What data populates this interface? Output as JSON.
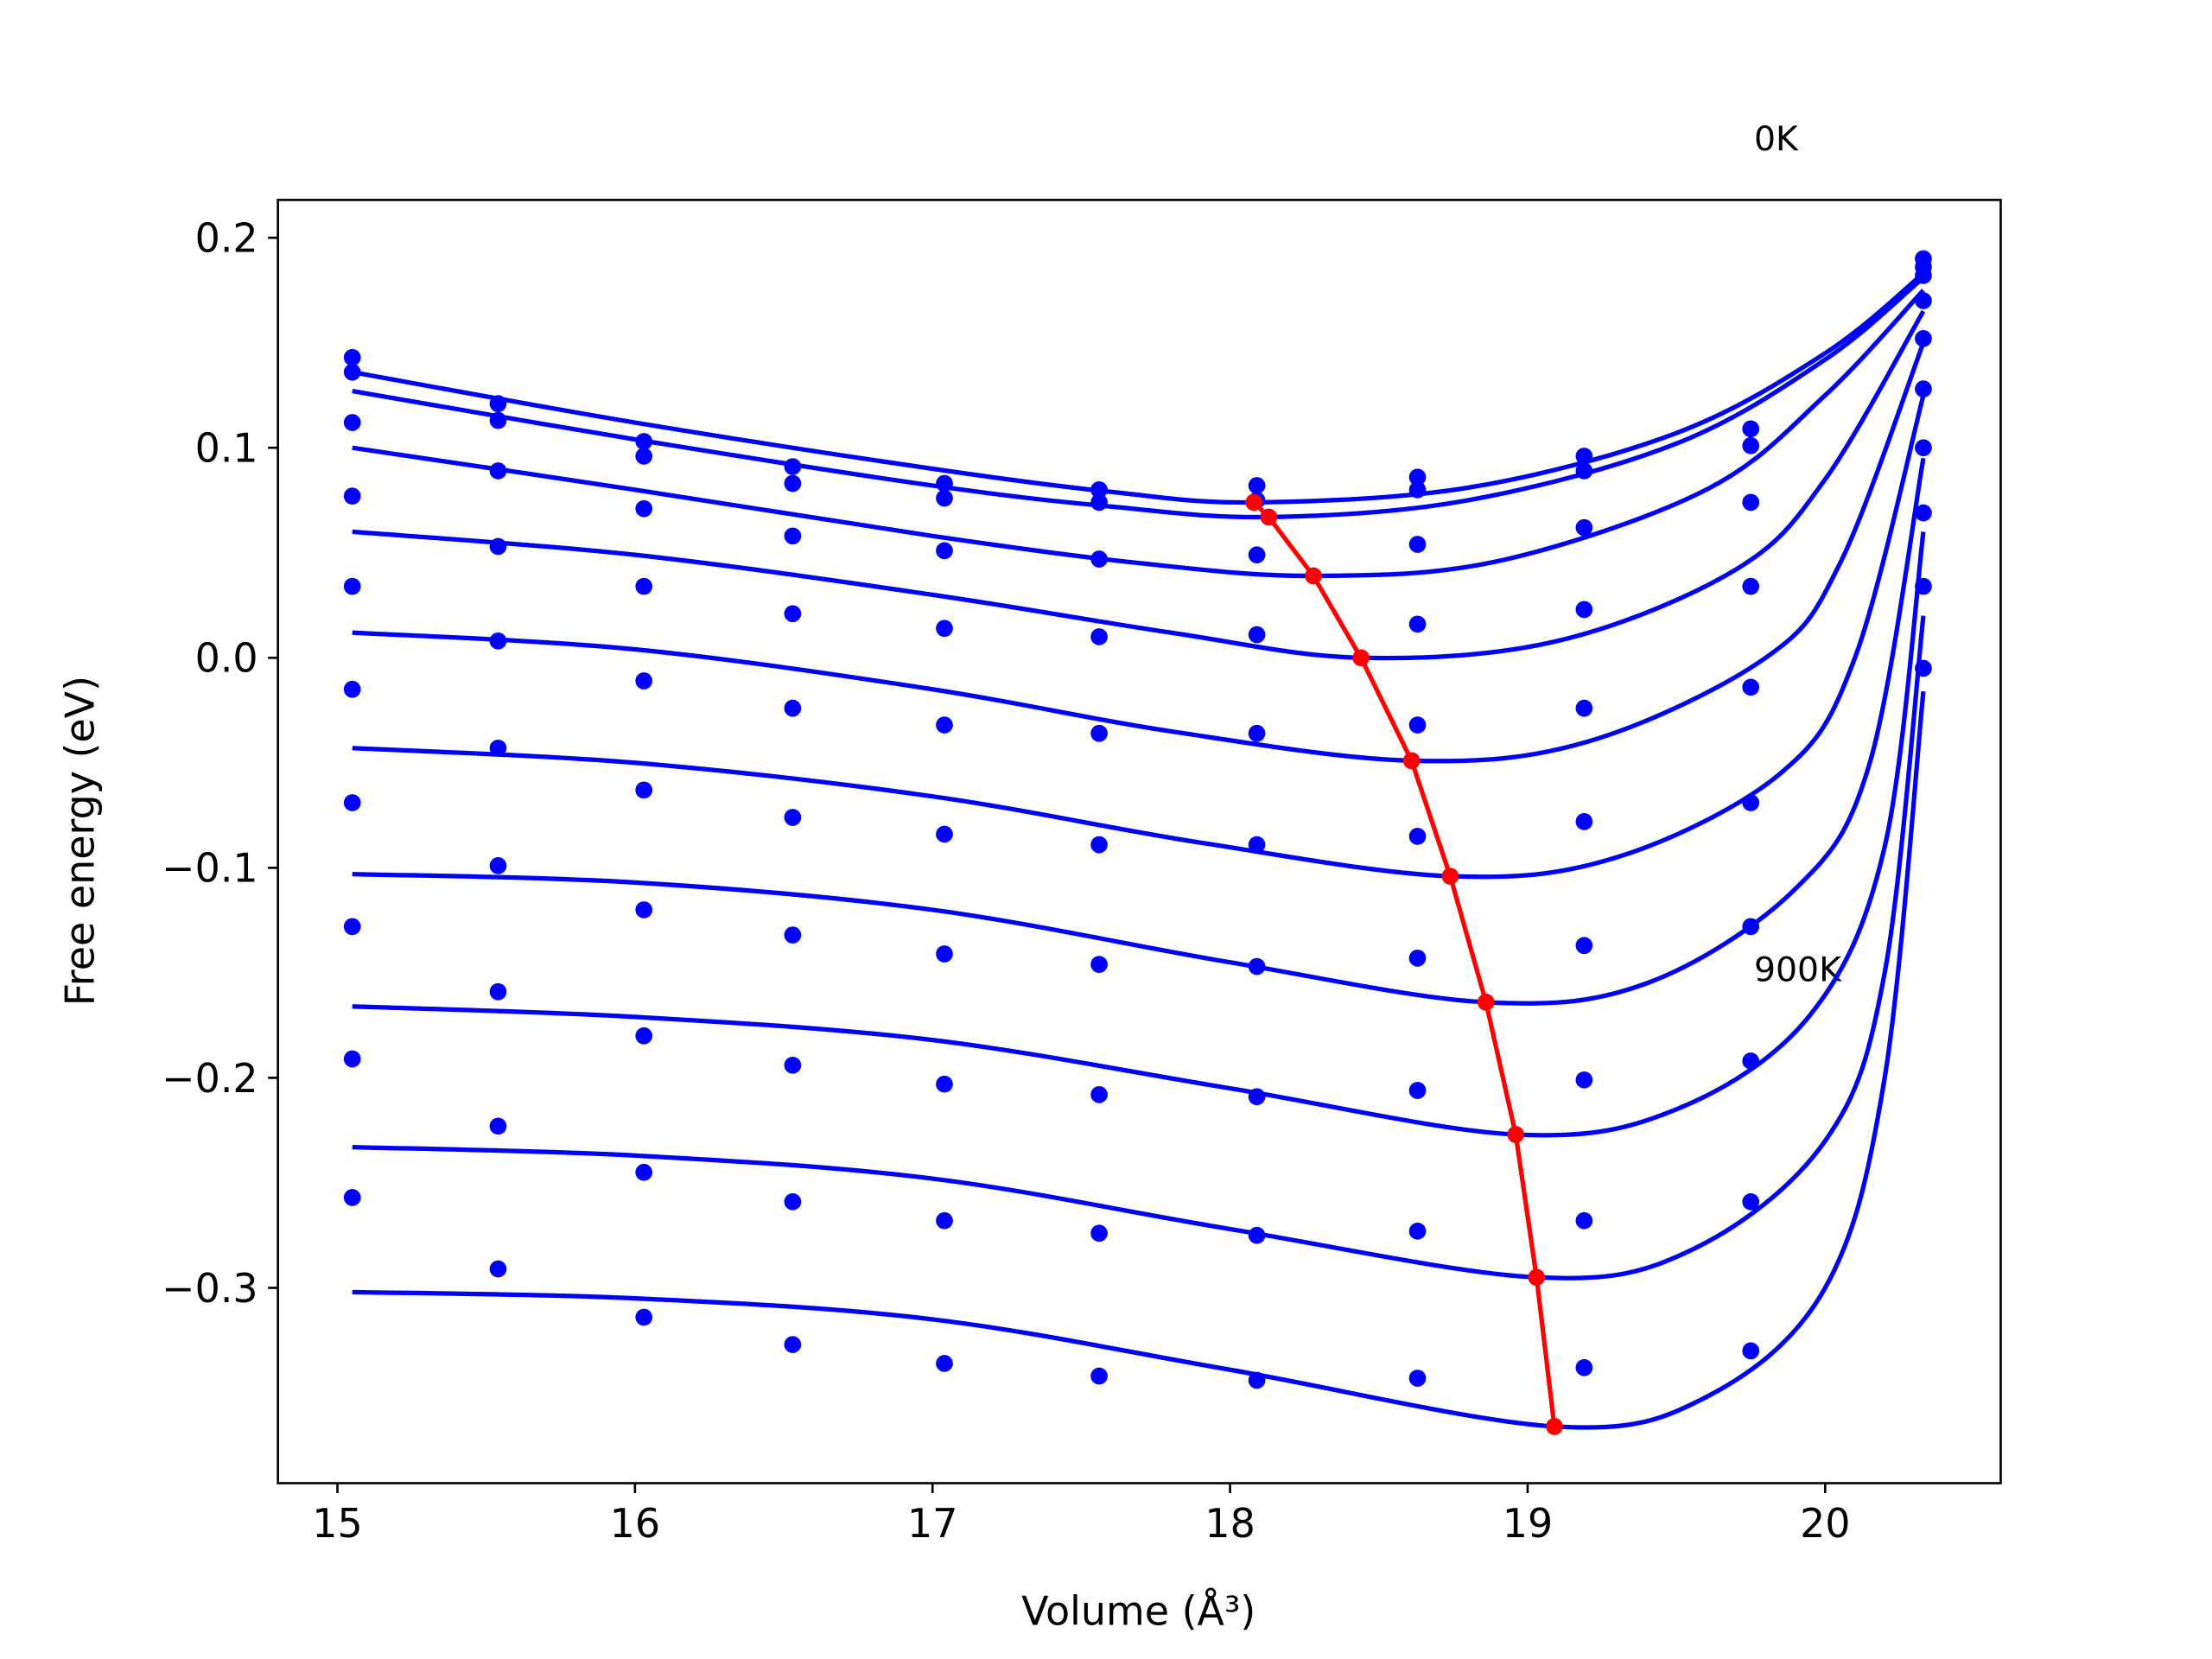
{
  "chart_data": {
    "type": "scatter",
    "xlabel": "Volume (Å³)",
    "ylabel": "Free energy (eV)",
    "annotations": [
      {
        "text": "0K"
      },
      {
        "text": "900K"
      }
    ],
    "xlim": [
      14.8,
      20.59
    ],
    "ylim": [
      -0.393,
      0.218
    ],
    "xticks": [
      15,
      16,
      17,
      18,
      19,
      20
    ],
    "yticks": [
      {
        "value": -0.3,
        "label": "−0.3"
      },
      {
        "value": -0.2,
        "label": "−0.2"
      },
      {
        "value": -0.1,
        "label": "−0.1"
      },
      {
        "value": 0,
        "label": "0.0"
      },
      0.1,
      0.2
    ],
    "grid": false,
    "x": [
      15.05,
      15.54,
      16.03,
      16.53,
      17.04,
      17.56,
      18.09,
      18.63,
      19.19,
      19.75,
      20.33
    ],
    "series": [
      {
        "color": "#0000ff",
        "values": [
          0.143,
          0.121,
          0.103,
          0.091,
          0.083,
          0.08,
          0.082,
          0.086,
          0.096,
          0.109,
          0.19
        ]
      },
      {
        "color": "#0000ff",
        "values": [
          0.136,
          0.113,
          0.096,
          0.083,
          0.076,
          0.074,
          0.075,
          0.08,
          0.089,
          0.101,
          0.186
        ]
      },
      {
        "color": "#0000ff",
        "values": [
          0.112,
          0.089,
          0.071,
          0.058,
          0.051,
          0.047,
          0.049,
          0.054,
          0.062,
          0.074,
          0.182
        ]
      },
      {
        "color": "#0000ff",
        "values": [
          0.077,
          0.053,
          0.034,
          0.021,
          0.014,
          0.01,
          0.011,
          0.016,
          0.023,
          0.034,
          0.17
        ]
      },
      {
        "color": "#0000ff",
        "values": [
          0.034,
          0.008,
          -0.011,
          -0.024,
          -0.032,
          -0.036,
          -0.036,
          -0.032,
          -0.024,
          -0.014,
          0.152
        ]
      },
      {
        "color": "#0000ff",
        "values": [
          -0.015,
          -0.043,
          -0.063,
          -0.076,
          -0.084,
          -0.089,
          -0.089,
          -0.085,
          -0.078,
          -0.069,
          0.128
        ]
      },
      {
        "color": "#0000ff",
        "values": [
          -0.069,
          -0.099,
          -0.12,
          -0.132,
          -0.141,
          -0.146,
          -0.147,
          -0.143,
          -0.137,
          -0.128,
          0.1
        ]
      },
      {
        "color": "#0000ff",
        "values": [
          -0.128,
          -0.159,
          -0.18,
          -0.194,
          -0.203,
          -0.208,
          -0.209,
          -0.206,
          -0.201,
          -0.192,
          0.069
        ]
      },
      {
        "color": "#0000ff",
        "values": [
          -0.191,
          -0.223,
          -0.245,
          -0.259,
          -0.268,
          -0.274,
          -0.275,
          -0.273,
          -0.268,
          -0.259,
          0.034
        ]
      },
      {
        "color": "#0000ff",
        "values": [
          -0.257,
          -0.291,
          -0.314,
          -0.327,
          -0.336,
          -0.342,
          -0.344,
          -0.343,
          -0.338,
          -0.33,
          -0.005
        ]
      }
    ],
    "fits": [
      {
        "color": "#0000ff",
        "x": [
          15.05,
          16,
          17,
          17.6,
          18.08,
          18.8,
          19.5,
          20,
          20.33
        ],
        "values": [
          0.136,
          0.112,
          0.09,
          0.079,
          0.074,
          0.081,
          0.107,
          0.145,
          0.183
        ]
      },
      {
        "color": "#0000ff",
        "x": [
          15.05,
          16,
          17,
          17.6,
          18.13,
          18.8,
          19.5,
          20,
          20.33
        ],
        "values": [
          0.127,
          0.104,
          0.082,
          0.072,
          0.067,
          0.075,
          0.102,
          0.142,
          0.181
        ]
      },
      {
        "color": "#0000ff",
        "x": [
          15.05,
          16,
          17,
          17.7,
          18.28,
          18.9,
          19.6,
          20,
          20.33
        ],
        "values": [
          0.1,
          0.08,
          0.058,
          0.045,
          0.039,
          0.046,
          0.08,
          0.125,
          0.175
        ]
      },
      {
        "color": "#0000ff",
        "x": [
          15.05,
          16,
          17,
          17.8,
          18.44,
          19.1,
          19.7,
          20,
          20.33
        ],
        "values": [
          0.06,
          0.049,
          0.03,
          0.012,
          0.0,
          0.008,
          0.042,
          0.085,
          0.165
        ]
      },
      {
        "color": "#0000ff",
        "x": [
          15.05,
          16,
          17,
          17.8,
          18.61,
          19.2,
          19.8,
          20.05,
          20.33
        ],
        "values": [
          0.012,
          0.004,
          -0.015,
          -0.035,
          -0.049,
          -0.04,
          0.0,
          0.045,
          0.15
        ]
      },
      {
        "color": "#0000ff",
        "x": [
          15.05,
          16,
          17,
          17.9,
          18.74,
          19.3,
          19.85,
          20.1,
          20.33
        ],
        "values": [
          -0.043,
          -0.05,
          -0.066,
          -0.088,
          -0.104,
          -0.095,
          -0.055,
          0.0,
          0.125
        ]
      },
      {
        "color": "#0000ff",
        "x": [
          15.05,
          16,
          17,
          18,
          18.86,
          19.4,
          19.9,
          20.15,
          20.33
        ],
        "values": [
          -0.103,
          -0.107,
          -0.12,
          -0.145,
          -0.164,
          -0.155,
          -0.11,
          -0.05,
          0.095
        ]
      },
      {
        "color": "#0000ff",
        "x": [
          15.05,
          16,
          17,
          18,
          18.96,
          19.5,
          19.95,
          20.2,
          20.33
        ],
        "values": [
          -0.166,
          -0.171,
          -0.182,
          -0.205,
          -0.227,
          -0.215,
          -0.17,
          -0.09,
          0.06
        ]
      },
      {
        "color": "#0000ff",
        "x": [
          15.05,
          16,
          17,
          18,
          19.03,
          19.55,
          20,
          20.2,
          20.33
        ],
        "values": [
          -0.233,
          -0.237,
          -0.248,
          -0.272,
          -0.295,
          -0.282,
          -0.23,
          -0.15,
          0.02
        ]
      },
      {
        "color": "#0000ff",
        "x": [
          15.05,
          16,
          17,
          18,
          19.09,
          19.6,
          20,
          20.2,
          20.33
        ],
        "values": [
          -0.302,
          -0.305,
          -0.315,
          -0.339,
          -0.366,
          -0.352,
          -0.3,
          -0.2,
          -0.016
        ]
      }
    ],
    "minima": {
      "color": "#ff0000",
      "x": [
        18.08,
        18.13,
        18.28,
        18.44,
        18.61,
        18.74,
        18.86,
        18.96,
        19.03,
        19.09
      ],
      "values": [
        0.074,
        0.067,
        0.039,
        0.0,
        -0.049,
        -0.104,
        -0.164,
        -0.227,
        -0.295,
        -0.366
      ]
    }
  }
}
